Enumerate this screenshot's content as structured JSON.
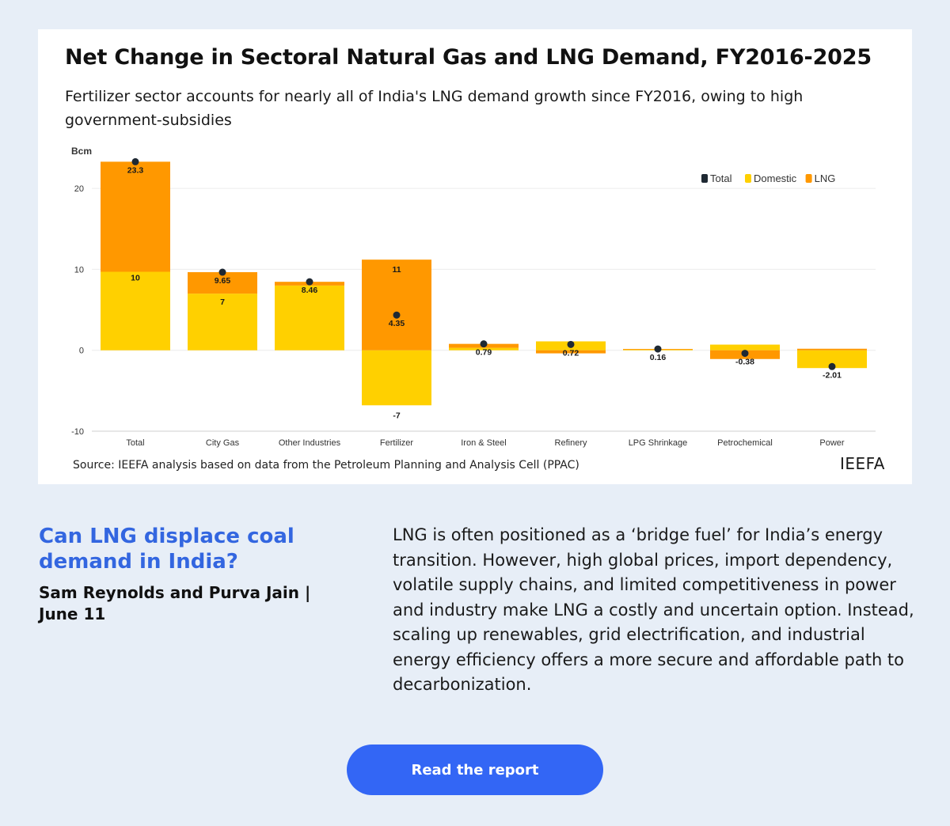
{
  "chart_data": {
    "type": "bar",
    "title": "Net Change in Sectoral Natural Gas and LNG Demand, FY2016-2025",
    "subtitle": "Fertilizer sector accounts for nearly all of India's LNG demand growth since FY2016, owing to high government-subsidies",
    "ylabel": "Bcm",
    "ylim": [
      -10,
      25
    ],
    "yticks": [
      -10,
      0,
      10,
      20
    ],
    "grid": true,
    "stacked": true,
    "legend_position": "top-right",
    "categories": [
      "Total",
      "City Gas",
      "Other Industries",
      "Fertilizer",
      "Iron & Steel",
      "Refinery",
      "LPG Shrinkage",
      "Petrochemical",
      "Power"
    ],
    "series": [
      {
        "name": "Total",
        "kind": "point",
        "color": "#1f2933",
        "values": [
          23.3,
          9.65,
          8.46,
          4.35,
          0.79,
          0.72,
          0.16,
          -0.38,
          -2.01
        ]
      },
      {
        "name": "Domestic",
        "kind": "bar",
        "color": "#ffd000",
        "values": [
          9.7,
          7,
          8,
          -6.8,
          0.3,
          1.1,
          0.12,
          0.7,
          -2.2
        ]
      },
      {
        "name": "LNG",
        "kind": "bar",
        "color": "#ff9800",
        "values": [
          13.6,
          2.65,
          0.46,
          11.2,
          0.49,
          -0.38,
          0.04,
          -1.08,
          0.19
        ]
      }
    ],
    "data_labels": [
      {
        "category": "Total",
        "value": 23.3,
        "text": "23.3"
      },
      {
        "category": "Total",
        "value": 10,
        "text": "10"
      },
      {
        "category": "City Gas",
        "value": 9.65,
        "text": "9.65"
      },
      {
        "category": "City Gas",
        "value": 7,
        "text": "7"
      },
      {
        "category": "Other Industries",
        "value": 8.46,
        "text": "8.46"
      },
      {
        "category": "Fertilizer",
        "value": 11,
        "text": "11"
      },
      {
        "category": "Fertilizer",
        "value": 4.35,
        "text": "4.35"
      },
      {
        "category": "Fertilizer",
        "value": -7,
        "text": "-7"
      },
      {
        "category": "Iron & Steel",
        "value": 0.79,
        "text": "0.79"
      },
      {
        "category": "Refinery",
        "value": 0.72,
        "text": "0.72"
      },
      {
        "category": "LPG Shrinkage",
        "value": 0.16,
        "text": "0.16"
      },
      {
        "category": "Petrochemical",
        "value": -0.38,
        "text": "-0.38"
      },
      {
        "category": "Power",
        "value": -2.01,
        "text": "-2.01"
      }
    ],
    "source": "Source: IEEFA analysis based on data from the Petroleum Planning and Analysis Cell (PPAC)",
    "brand": "IEEFA"
  },
  "article": {
    "title": "Can LNG displace coal demand in India?",
    "byline": "Sam Reynolds and Purva Jain | June 11",
    "body": "LNG is often positioned as a ‘bridge fuel’ for India’s energy transition. However, high global prices, import dependency, volatile supply chains, and limited competitiveness in power and industry make LNG a costly and uncertain option. Instead, scaling up renewables, grid electrification, and industrial energy efficiency offers a more secure and affordable path to decarbonization."
  },
  "cta": {
    "label": "Read the report"
  },
  "colors": {
    "background": "#e7eef7",
    "accent": "#3366e0",
    "button": "#3366f5",
    "domestic": "#ffd000",
    "lng": "#ff9800",
    "total": "#1f2933"
  }
}
